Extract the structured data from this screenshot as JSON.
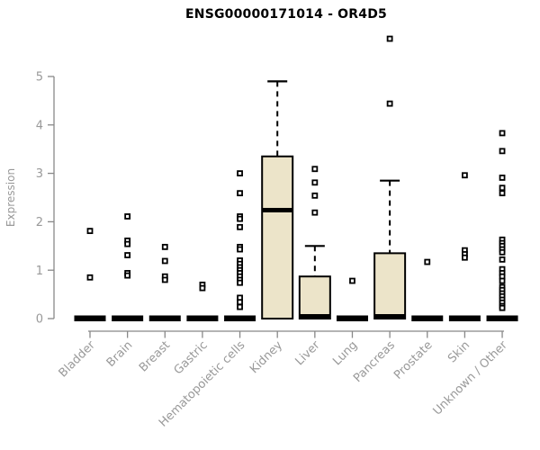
{
  "chart_data": {
    "type": "boxplot",
    "title": "ENSG00000171014 - OR4D5",
    "xlabel": "",
    "ylabel": "Expression",
    "ylim": [
      0,
      5
    ],
    "yticks": [
      0,
      1,
      2,
      3,
      4,
      5
    ],
    "grid": false,
    "legend": "none",
    "categories": [
      "Bladder",
      "Brain",
      "Breast",
      "Gastric",
      "Hematopoietic cells",
      "Kidney",
      "Liver",
      "Lung",
      "Pancreas",
      "Prostate",
      "Skin",
      "Unknown / Other"
    ],
    "series": [
      {
        "name": "Bladder",
        "q1": 0,
        "median": 0,
        "q3": 0,
        "whisker_low": 0,
        "whisker_high": 0,
        "outliers": [
          1.81,
          0.85
        ]
      },
      {
        "name": "Brain",
        "q1": 0,
        "median": 0,
        "q3": 0,
        "whisker_low": 0,
        "whisker_high": 0,
        "outliers": [
          2.11,
          1.61,
          1.54,
          1.31,
          0.94,
          0.89
        ]
      },
      {
        "name": "Breast",
        "q1": 0,
        "median": 0,
        "q3": 0,
        "whisker_low": 0,
        "whisker_high": 0,
        "outliers": [
          1.48,
          1.19,
          0.87,
          0.8
        ]
      },
      {
        "name": "Gastric",
        "q1": 0,
        "median": 0,
        "q3": 0,
        "whisker_low": 0,
        "whisker_high": 0,
        "outliers": [
          0.7,
          0.63
        ]
      },
      {
        "name": "Hematopoietic cells",
        "q1": 0,
        "median": 0,
        "q3": 0,
        "whisker_low": 0,
        "whisker_high": 0,
        "outliers": [
          3.0,
          2.59,
          2.11,
          2.06,
          1.89,
          1.48,
          1.43,
          1.2,
          1.13,
          1.06,
          1.0,
          0.94,
          0.87,
          0.8,
          0.74,
          0.43,
          0.34,
          0.24
        ]
      },
      {
        "name": "Kidney",
        "q1": 0,
        "median": 2.24,
        "q3": 3.35,
        "whisker_low": 0,
        "whisker_high": 4.9,
        "outliers": []
      },
      {
        "name": "Liver",
        "q1": 0,
        "median": 0.02,
        "q3": 0.87,
        "whisker_low": 0,
        "whisker_high": 1.5,
        "outliers": [
          3.09,
          2.81,
          2.54,
          2.19
        ]
      },
      {
        "name": "Lung",
        "q1": 0,
        "median": 0,
        "q3": 0,
        "whisker_low": 0,
        "whisker_high": 0,
        "outliers": [
          0.78
        ]
      },
      {
        "name": "Pancreas",
        "q1": 0,
        "median": 0.02,
        "q3": 1.35,
        "whisker_low": 0,
        "whisker_high": 2.85,
        "outliers": [
          5.78,
          4.44
        ]
      },
      {
        "name": "Prostate",
        "q1": 0,
        "median": 0,
        "q3": 0,
        "whisker_low": 0,
        "whisker_high": 0,
        "outliers": [
          1.17
        ]
      },
      {
        "name": "Skin",
        "q1": 0,
        "median": 0,
        "q3": 0,
        "whisker_low": 0,
        "whisker_high": 0,
        "outliers": [
          2.96,
          1.41,
          1.33,
          1.26
        ]
      },
      {
        "name": "Unknown / Other",
        "q1": 0,
        "median": 0,
        "q3": 0,
        "whisker_low": 0,
        "whisker_high": 0,
        "outliers": [
          3.83,
          3.46,
          2.91,
          2.7,
          2.59,
          1.63,
          1.56,
          1.5,
          1.43,
          1.37,
          1.22,
          1.02,
          0.94,
          0.87,
          0.78,
          0.65,
          0.59,
          0.52,
          0.46,
          0.39,
          0.33,
          0.26,
          0.22
        ]
      }
    ]
  },
  "colors": {
    "background": "#ffffff",
    "title": "#000000",
    "box_fill": "#ece4c9",
    "box_stroke": "#000000",
    "axis_line": "#888888",
    "tick_text": "#999999",
    "outlier_fill": "#ffffff",
    "outlier_stroke": "#000000"
  }
}
